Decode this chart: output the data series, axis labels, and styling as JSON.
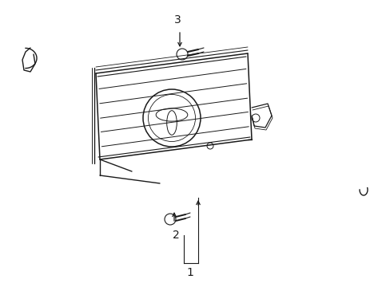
{
  "bg_color": "#ffffff",
  "line_color": "#1a1a1a",
  "lw": 1.0,
  "figsize": [
    4.89,
    3.6
  ],
  "dpi": 100
}
